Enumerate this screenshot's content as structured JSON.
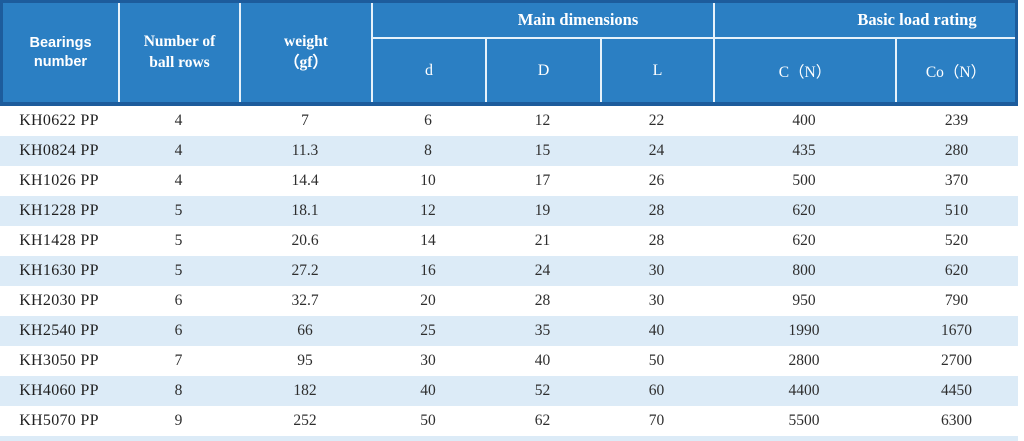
{
  "colors": {
    "header_blue": "#2b7fc3",
    "frame_dark_blue": "#1d5c9c",
    "alt_row_blue": "#dcebf7",
    "header_text": "#ffffff",
    "body_text": "#2e2e2e"
  },
  "table": {
    "header": {
      "bearings_number": "Bearings number",
      "number_of_ball_rows": "Number of ball rows",
      "weight_line1": "weight",
      "weight_line2": "（gf）",
      "group_main_dimensions": "Main dimensions",
      "group_basic_load_rating": "Basic load rating",
      "sub_d": "d",
      "sub_D": "D",
      "sub_L": "L",
      "sub_C": "C（N）",
      "sub_Co": "Co（N）"
    },
    "rows": [
      {
        "cells": [
          "KH0622 PP",
          "4",
          "7",
          "6",
          "12",
          "22",
          "400",
          "239"
        ]
      },
      {
        "cells": [
          "KH0824 PP",
          "4",
          "11.3",
          "8",
          "15",
          "24",
          "435",
          "280"
        ]
      },
      {
        "cells": [
          "KH1026 PP",
          "4",
          "14.4",
          "10",
          "17",
          "26",
          "500",
          "370"
        ]
      },
      {
        "cells": [
          "KH1228 PP",
          "5",
          "18.1",
          "12",
          "19",
          "28",
          "620",
          "510"
        ]
      },
      {
        "cells": [
          "KH1428 PP",
          "5",
          "20.6",
          "14",
          "21",
          "28",
          "620",
          "520"
        ]
      },
      {
        "cells": [
          "KH1630 PP",
          "5",
          "27.2",
          "16",
          "24",
          "30",
          "800",
          "620"
        ]
      },
      {
        "cells": [
          "KH2030 PP",
          "6",
          "32.7",
          "20",
          "28",
          "30",
          "950",
          "790"
        ]
      },
      {
        "cells": [
          "KH2540 PP",
          "6",
          "66",
          "25",
          "35",
          "40",
          "1990",
          "1670"
        ]
      },
      {
        "cells": [
          "KH3050 PP",
          "7",
          "95",
          "30",
          "40",
          "50",
          "2800",
          "2700"
        ]
      },
      {
        "cells": [
          "KH4060 PP",
          "8",
          "182",
          "40",
          "52",
          "60",
          "4400",
          "4450"
        ]
      },
      {
        "cells": [
          "KH5070 PP",
          "9",
          "252",
          "50",
          "62",
          "70",
          "5500",
          "6300"
        ]
      }
    ]
  }
}
